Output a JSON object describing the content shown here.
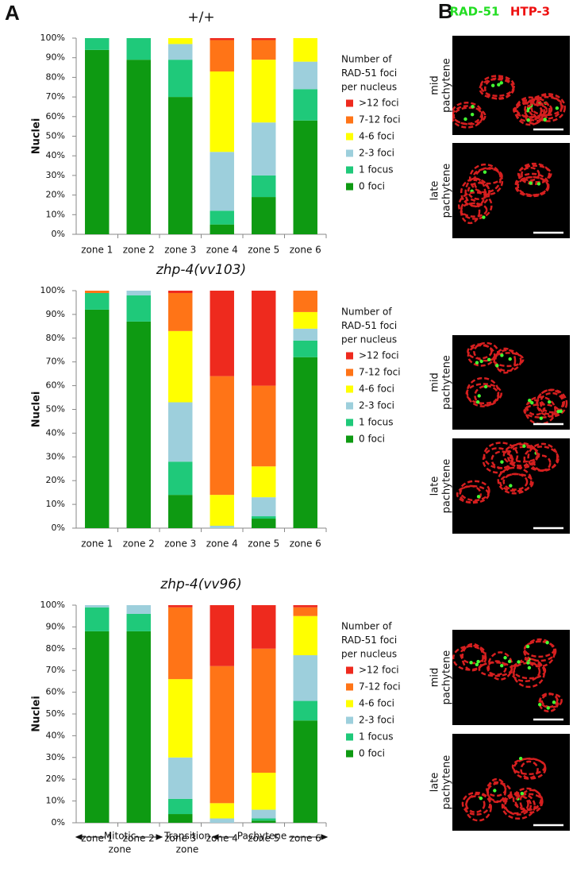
{
  "panel_labels": [
    "A",
    "B"
  ],
  "annotations": [
    [
      "Mitotic",
      "zone"
    ],
    [
      "Transition",
      "zone"
    ],
    "Pachytene"
  ],
  "micrographs": {
    "stains": [
      "RAD-51",
      "HTP-3"
    ],
    "rows": [
      [
        "mid",
        "pachytene"
      ],
      [
        "late",
        "pachytene"
      ],
      [
        "mid",
        "pachytene"
      ],
      [
        "late",
        "pachytene"
      ],
      [
        "mid",
        "pachytene"
      ],
      [
        "late",
        "pachytene"
      ]
    ]
  },
  "chart_data": [
    {
      "type": "bar",
      "stacked": true,
      "title": "+/+",
      "ylabel": "Nuclei",
      "categories": [
        "zone 1",
        "zone 2",
        "zone 3",
        "zone 4",
        "zone 5",
        "zone 6"
      ],
      "legend_title": [
        "Number of",
        "RAD-51 foci",
        "per nucleus"
      ],
      "series": [
        {
          "name": "0 foci",
          "color": "#0e9a12",
          "values": [
            94,
            89,
            70,
            5,
            19,
            58
          ]
        },
        {
          "name": "1 focus",
          "color": "#1fc97a",
          "values": [
            6,
            11,
            19,
            7,
            11,
            16
          ]
        },
        {
          "name": "2-3 foci",
          "color": "#9dcfdc",
          "values": [
            0,
            0,
            8,
            30,
            27,
            14
          ]
        },
        {
          "name": "4-6 foci",
          "color": "#ffff00",
          "values": [
            0,
            0,
            3,
            41,
            32,
            12
          ]
        },
        {
          "name": "7-12 foci",
          "color": "#ff7417",
          "values": [
            0,
            0,
            0,
            16,
            10,
            0
          ]
        },
        {
          "name": ">12 foci",
          "color": "#ee2a1e",
          "values": [
            0,
            0,
            0,
            1,
            1,
            0
          ]
        }
      ],
      "ylim": [
        0,
        100
      ],
      "yticks": [
        {
          "value": 0,
          "label": "0%"
        },
        {
          "value": 10,
          "label": "10%"
        },
        {
          "value": 20,
          "label": "20%"
        },
        {
          "value": 30,
          "label": "30%"
        },
        {
          "value": 40,
          "label": "40%"
        },
        {
          "value": 50,
          "label": "50%"
        },
        {
          "value": 60,
          "label": "60%"
        },
        {
          "value": 70,
          "label": "70%"
        },
        {
          "value": 80,
          "label": "80%"
        },
        {
          "value": 90,
          "label": "90%"
        },
        {
          "value": 100,
          "label": "100%"
        }
      ]
    },
    {
      "type": "bar",
      "stacked": true,
      "title": "zhp-4(vv103)",
      "ylabel": "Nuclei",
      "categories": [
        "zone 1",
        "zone 2",
        "zone 3",
        "zone 4",
        "zone 5",
        "zone 6"
      ],
      "legend_title": [
        "Number of",
        "RAD-51 foci",
        "per nucleus"
      ],
      "series": [
        {
          "name": "0 foci",
          "color": "#0e9a12",
          "values": [
            92,
            87,
            14,
            0,
            4,
            72
          ]
        },
        {
          "name": "1 focus",
          "color": "#1fc97a",
          "values": [
            7,
            11,
            14,
            0,
            1,
            7
          ]
        },
        {
          "name": "2-3 foci",
          "color": "#9dcfdc",
          "values": [
            0,
            2,
            25,
            1,
            8,
            5
          ]
        },
        {
          "name": "4-6 foci",
          "color": "#ffff00",
          "values": [
            0,
            0,
            30,
            13,
            13,
            7
          ]
        },
        {
          "name": "7-12 foci",
          "color": "#ff7417",
          "values": [
            1,
            0,
            16,
            50,
            34,
            9
          ]
        },
        {
          "name": ">12 foci",
          "color": "#ee2a1e",
          "values": [
            0,
            0,
            1,
            36,
            40,
            0
          ]
        }
      ],
      "ylim": [
        0,
        100
      ],
      "yticks": [
        {
          "value": 0,
          "label": "0%"
        },
        {
          "value": 10,
          "label": "10%"
        },
        {
          "value": 20,
          "label": "20%"
        },
        {
          "value": 30,
          "label": "30%"
        },
        {
          "value": 40,
          "label": "40%"
        },
        {
          "value": 50,
          "label": "50%"
        },
        {
          "value": 60,
          "label": "60%"
        },
        {
          "value": 70,
          "label": "70%"
        },
        {
          "value": 80,
          "label": "80%"
        },
        {
          "value": 90,
          "label": "90%"
        },
        {
          "value": 100,
          "label": "100%"
        }
      ]
    },
    {
      "type": "bar",
      "stacked": true,
      "title": "zhp-4(vv96)",
      "ylabel": "Nuclei",
      "categories": [
        "zone 1",
        "zone 2",
        "zone 3",
        "zone 4",
        "zone 5",
        "zone 6"
      ],
      "legend_title": [
        "Number of",
        "RAD-51 foci",
        "per nucleus"
      ],
      "series": [
        {
          "name": "0 foci",
          "color": "#0e9a12",
          "values": [
            88,
            88,
            4,
            0,
            1,
            47
          ]
        },
        {
          "name": "1 focus",
          "color": "#1fc97a",
          "values": [
            11,
            8,
            7,
            0,
            1,
            9
          ]
        },
        {
          "name": "2-3 foci",
          "color": "#9dcfdc",
          "values": [
            1,
            4,
            19,
            2,
            4,
            21
          ]
        },
        {
          "name": "4-6 foci",
          "color": "#ffff00",
          "values": [
            0,
            0,
            36,
            7,
            17,
            18
          ]
        },
        {
          "name": "7-12 foci",
          "color": "#ff7417",
          "values": [
            0,
            0,
            33,
            63,
            57,
            4
          ]
        },
        {
          "name": ">12 foci",
          "color": "#ee2a1e",
          "values": [
            0,
            0,
            1,
            28,
            20,
            1
          ]
        }
      ],
      "ylim": [
        0,
        100
      ],
      "yticks": [
        {
          "value": 0,
          "label": "0%"
        },
        {
          "value": 10,
          "label": "10%"
        },
        {
          "value": 20,
          "label": "20%"
        },
        {
          "value": 30,
          "label": "30%"
        },
        {
          "value": 40,
          "label": "40%"
        },
        {
          "value": 50,
          "label": "50%"
        },
        {
          "value": 60,
          "label": "60%"
        },
        {
          "value": 70,
          "label": "70%"
        },
        {
          "value": 80,
          "label": "80%"
        },
        {
          "value": 90,
          "label": "90%"
        },
        {
          "value": 100,
          "label": "100%"
        }
      ]
    }
  ]
}
